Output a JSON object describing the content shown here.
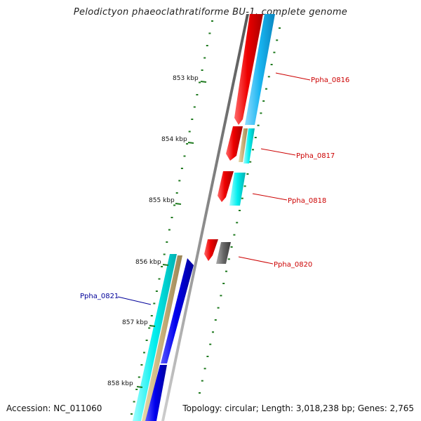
{
  "title": "Pelodictyon phaeoclathratiforme BU-1, complete genome",
  "footer": {
    "accession": "Accession: NC_011060",
    "stats": "Topology: circular; Length: 3,018,238 bp; Genes: 2,765"
  },
  "scale": {
    "ticks": [
      "853 kbp",
      "854 kbp",
      "855 kbp",
      "856 kbp",
      "857 kbp",
      "858 kbp"
    ],
    "tick_color": "#1f7a1f"
  },
  "genes": [
    {
      "label": "Ppha_0816",
      "color": "#cc0000"
    },
    {
      "label": "Ppha_0817",
      "color": "#cc0000"
    },
    {
      "label": "Ppha_0818",
      "color": "#cc0000"
    },
    {
      "label": "Ppha_0820",
      "color": "#cc0000"
    },
    {
      "label": "Ppha_0821",
      "color": "#000099"
    }
  ],
  "feature_colors": {
    "forward_cds": "#e00000",
    "reverse_cds": "#0000dd",
    "rna": "#00e0e0",
    "misc": "#c8b07a",
    "other": "#666666",
    "backbone": "#8a8a8a"
  }
}
